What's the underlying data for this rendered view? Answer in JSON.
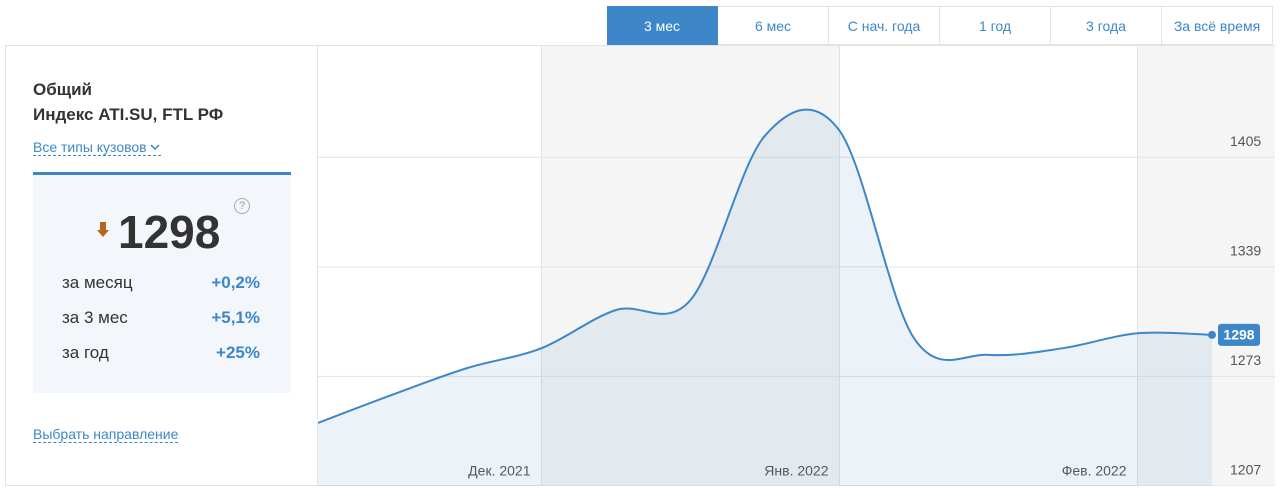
{
  "tabs": [
    "3 мес",
    "6 мес",
    "С нач. года",
    "1 год",
    "3 года",
    "За всё время"
  ],
  "active_tab": 0,
  "panel": {
    "title": "Общий",
    "subtitle": "Индекс ATI.SU, FTL РФ",
    "body_type_link": "Все типы кузовов",
    "help": "?",
    "value": 1298,
    "stats": [
      {
        "label": "за месяц",
        "value": "+0,2%"
      },
      {
        "label": "за 3 мес",
        "value": "+5,1%"
      },
      {
        "label": "за год",
        "value": "+25%"
      }
    ],
    "direction_link": "Выбрать направление"
  },
  "chart_data": {
    "type": "line",
    "categories": [
      null,
      null,
      null,
      "Дек. 2021",
      null,
      null,
      null,
      "Янв. 2022",
      null,
      null,
      null,
      "Фев. 2022",
      null
    ],
    "values": [
      1245,
      1262,
      1278,
      1290,
      1313,
      1319,
      1418,
      1421,
      1296,
      1286,
      1290,
      1299,
      1298
    ],
    "color": "#3d87c8",
    "ylim": [
      1207,
      1472
    ],
    "yticks": [
      1207,
      1273,
      1339,
      1405
    ],
    "grid": true
  }
}
